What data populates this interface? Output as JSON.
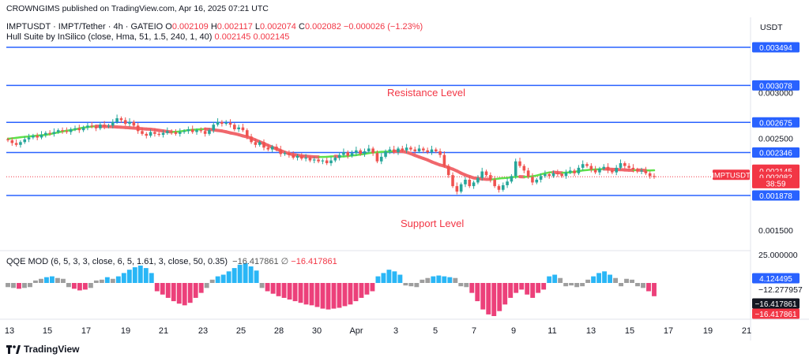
{
  "header": {
    "published": "CROWNGIMS published on TradingView.com, Apr 16, 2025 07:21 UTC",
    "symbol": "IMPTUSDT · IMPT/Tether · 4h · GATEIO",
    "o_label": "O",
    "o": "0.002109",
    "h_label": "H",
    "h": "0.002117",
    "l_label": "L",
    "l": "0.002074",
    "c_label": "C",
    "c": "0.002082",
    "change": "−0.000026 (−1.23%)",
    "hull_label": "Hull Suite by InSilico (close, Hma, 51, 1.5, 240, 1, 40)",
    "hull_v1": "0.002145",
    "hull_v2": "0.002145",
    "qqe_label": "QQE MOD (6, 5, 3, 3, close, 6, 5, 1.61, 3, close, 50, 0.35)",
    "qqe_v1": "−16.417861",
    "qqe_sym": "∅",
    "qqe_v2": "−16.417861"
  },
  "brand": {
    "name": "TradingView",
    "icon": "tradingview-logo-icon"
  },
  "chart_data": {
    "type": "candlestick",
    "currency": "USDT",
    "price_axis": {
      "ticks": [
        "0.003000",
        "0.002500",
        "0.001500"
      ],
      "labels": [
        {
          "text": "0.003494",
          "value": 0.003494,
          "color": "#2962ff"
        },
        {
          "text": "0.003078",
          "value": 0.003078,
          "color": "#2962ff"
        },
        {
          "text": "0.002675",
          "value": 0.002675,
          "color": "#2962ff"
        },
        {
          "text": "0.002346",
          "value": 0.002346,
          "color": "#2962ff"
        },
        {
          "text": "0.002145",
          "value": 0.00216,
          "color": "#f23645"
        },
        {
          "text": "0.002145",
          "value": 0.002145,
          "color": "#f23645"
        },
        {
          "text": "0.002082",
          "value": 0.002082,
          "color": "#f23645"
        },
        {
          "text": "38:59",
          "value": 0.002012,
          "color": "#f23645"
        },
        {
          "text": "0.001878",
          "value": 0.001878,
          "color": "#2962ff"
        }
      ],
      "symbol_tag": "IMPTUSDT"
    },
    "levels": [
      0.003494,
      0.003078,
      0.002675,
      0.002346,
      0.001878
    ],
    "annotations": [
      "Resistance Level",
      "Support Level"
    ],
    "current_price": 0.002082,
    "x_ticks": [
      "13",
      "15",
      "17",
      "19",
      "21",
      "23",
      "25",
      "28",
      "30",
      "Apr",
      "3",
      "5",
      "7",
      "9",
      "11",
      "13",
      "15",
      "17",
      "19",
      "21"
    ],
    "closes": [
      0.00248,
      0.00245,
      0.00243,
      0.00246,
      0.00249,
      0.00251,
      0.00253,
      0.00251,
      0.00254,
      0.00256,
      0.00255,
      0.00257,
      0.00259,
      0.00258,
      0.00257,
      0.0026,
      0.00261,
      0.00259,
      0.00262,
      0.00264,
      0.00263,
      0.00261,
      0.00265,
      0.00263,
      0.00264,
      0.00268,
      0.00272,
      0.0027,
      0.00266,
      0.00268,
      0.00264,
      0.00258,
      0.00255,
      0.00253,
      0.00257,
      0.00255,
      0.00254,
      0.00256,
      0.00258,
      0.00257,
      0.00255,
      0.00257,
      0.00258,
      0.0026,
      0.00257,
      0.00259,
      0.00258,
      0.00255,
      0.00259,
      0.00265,
      0.00268,
      0.00266,
      0.00267,
      0.00265,
      0.0026,
      0.00262,
      0.00259,
      0.00252,
      0.00246,
      0.00243,
      0.00246,
      0.0024,
      0.00238,
      0.00241,
      0.00238,
      0.00233,
      0.00234,
      0.00232,
      0.00229,
      0.00231,
      0.00228,
      0.00229,
      0.00226,
      0.00227,
      0.00225,
      0.00226,
      0.00223,
      0.00226,
      0.00229,
      0.00232,
      0.00235,
      0.00231,
      0.00234,
      0.00237,
      0.00233,
      0.00236,
      0.00239,
      0.00234,
      0.00225,
      0.0023,
      0.00236,
      0.00238,
      0.00235,
      0.00239,
      0.00237,
      0.0024,
      0.00238,
      0.00236,
      0.00239,
      0.00237,
      0.00235,
      0.00238,
      0.00236,
      0.00232,
      0.0022,
      0.0021,
      0.00198,
      0.00192,
      0.002,
      0.00205,
      0.00198,
      0.00202,
      0.00207,
      0.00214,
      0.0021,
      0.00205,
      0.00198,
      0.00194,
      0.00199,
      0.00203,
      0.00209,
      0.00225,
      0.0022,
      0.00215,
      0.00208,
      0.00202,
      0.00205,
      0.00209,
      0.00211,
      0.00209,
      0.00212,
      0.00211,
      0.00209,
      0.00213,
      0.00215,
      0.00212,
      0.00218,
      0.00222,
      0.0022,
      0.00216,
      0.00213,
      0.00217,
      0.00219,
      0.00215,
      0.00213,
      0.00218,
      0.00223,
      0.0022,
      0.00218,
      0.00216,
      0.00214,
      0.00215,
      0.00212,
      0.00209,
      0.00208
    ],
    "qqe_axis": {
      "ticks": [
        "25.000000",
        "−12.277957"
      ],
      "labels": [
        {
          "text": "4.124495",
          "value": 4.124495,
          "color": "#2962ff"
        },
        {
          "text": "−16.417861",
          "value": -16.0,
          "color": "#131722"
        },
        {
          "text": "−16.417861",
          "value": -24.0,
          "color": "#f23645"
        }
      ]
    },
    "qqe_values": [
      -5,
      -6,
      -7,
      -6,
      -5,
      3,
      5,
      7,
      8,
      6,
      5,
      -5,
      -7,
      -9,
      -8,
      -6,
      3,
      4,
      7,
      5,
      8,
      12,
      16,
      19,
      21,
      18,
      12,
      -10,
      -14,
      -18,
      -22,
      -25,
      -27,
      -24,
      -18,
      -12,
      -6,
      4,
      8,
      10,
      14,
      18,
      22,
      24,
      20,
      15,
      -6,
      -10,
      -13,
      -16,
      -18,
      -20,
      -22,
      -24,
      -26,
      -27,
      -29,
      -31,
      -32,
      -31,
      -30,
      -28,
      -26,
      -22,
      -18,
      -14,
      -10,
      8,
      12,
      16,
      14,
      10,
      -3,
      -4,
      -5,
      4,
      6,
      8,
      9,
      8,
      7,
      6,
      -4,
      -5,
      -12,
      -22,
      -32,
      -38,
      -40,
      -34,
      -26,
      -18,
      -12,
      -8,
      -14,
      -18,
      -12,
      -8,
      8,
      10,
      6,
      -4,
      -3,
      -5,
      -4,
      4,
      8,
      12,
      14,
      10,
      6,
      -4,
      5,
      4,
      -4,
      -6,
      -10,
      -16
    ]
  }
}
